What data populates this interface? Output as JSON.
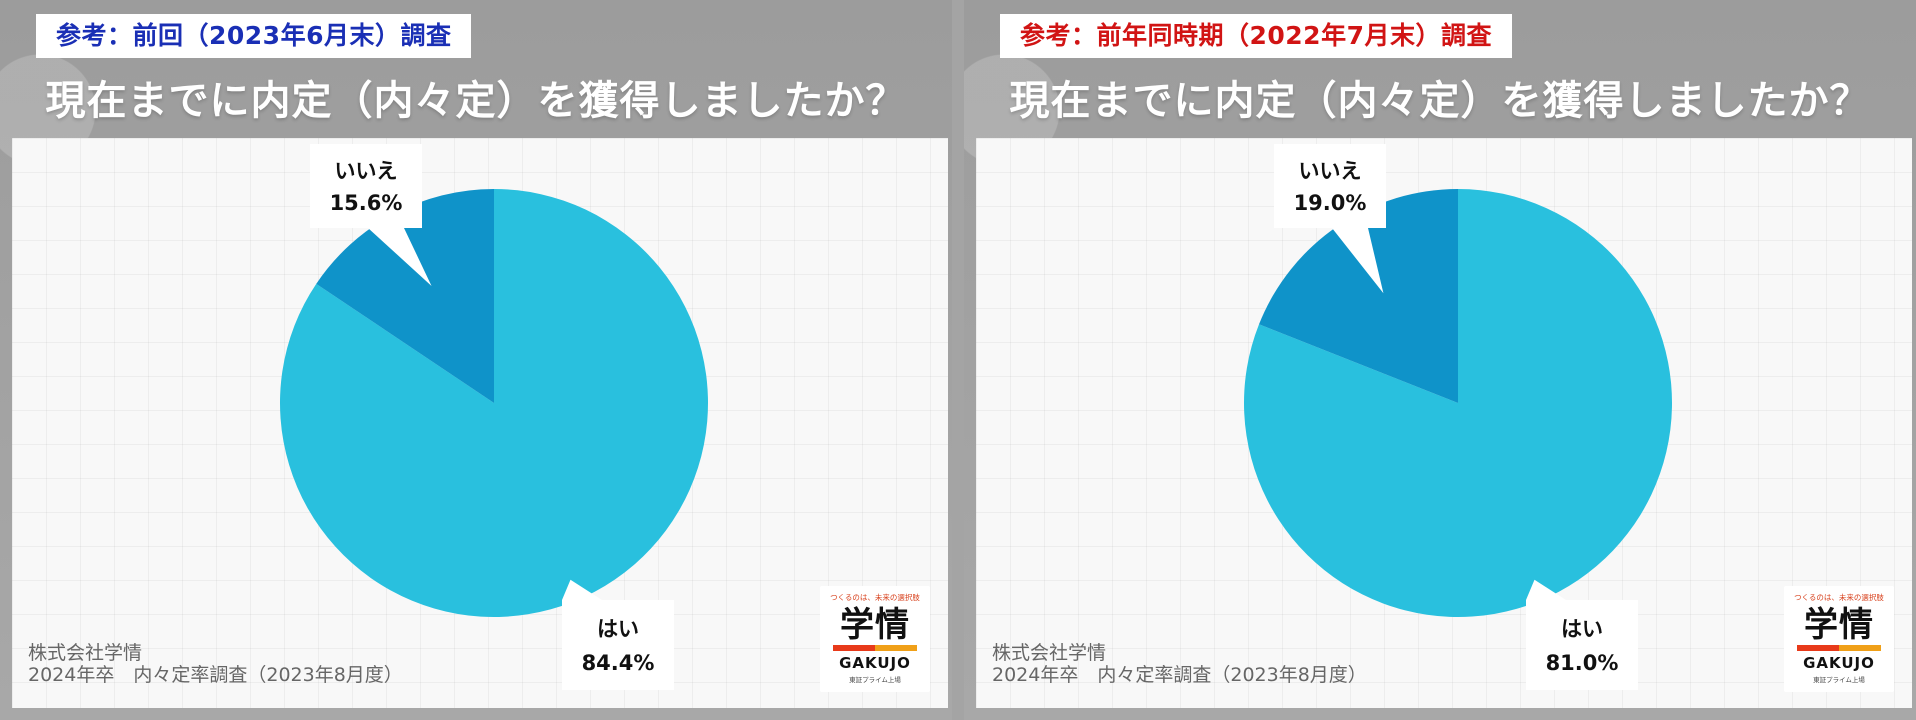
{
  "panels": [
    {
      "tag": "参考：前回（2023年6月末）調査",
      "tag_color": "#1a2fb5",
      "title": "現在までに内定（内々定）を獲得しましたか？",
      "footer_line1": "株式会社学情",
      "footer_line2": "2024年卒　内々定率調査（2023年8月度）",
      "logo": {
        "tagline": "つくるのは、未来の選択肢",
        "main": "学情",
        "en": "GAKUJO",
        "sub": "東証プライム上場"
      }
    },
    {
      "tag": "参考：前年同時期（2022年7月末）調査",
      "tag_color": "#d11414",
      "title": "現在までに内定（内々定）を獲得しましたか？",
      "footer_line1": "株式会社学情",
      "footer_line2": "2024年卒　内々定率調査（2023年8月度）",
      "logo": {
        "tagline": "つくるのは、未来の選択肢",
        "main": "学情",
        "en": "GAKUJO",
        "sub": "東証プライム上場"
      }
    }
  ],
  "chart_data": [
    {
      "type": "pie",
      "title": "現在までに内定（内々定）を獲得しましたか？",
      "categories": [
        "はい",
        "いいえ"
      ],
      "values": [
        84.4,
        15.6
      ],
      "labels": [
        "84.4%",
        "15.6%"
      ],
      "colors": [
        "#29c0de",
        "#0f93c9"
      ]
    },
    {
      "type": "pie",
      "title": "現在までに内定（内々定）を獲得しましたか？",
      "categories": [
        "はい",
        "いいえ"
      ],
      "values": [
        81.0,
        19.0
      ],
      "labels": [
        "81.0%",
        "19.0%"
      ],
      "colors": [
        "#29c0de",
        "#0f93c9"
      ]
    }
  ]
}
